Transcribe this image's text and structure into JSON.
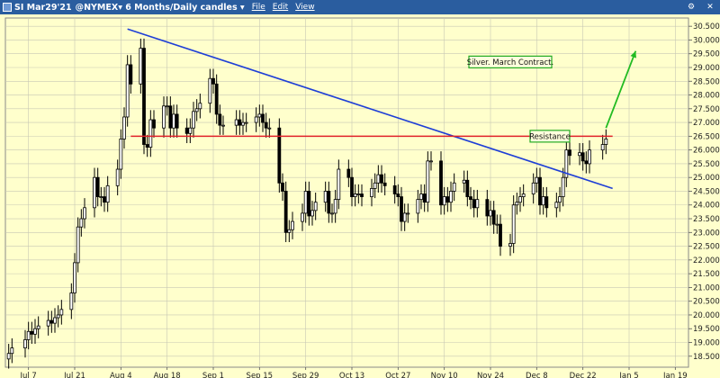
{
  "window": {
    "symbol": "SI Mar29'21",
    "exchange_period": "@NYMEX▾ 6 Months/Daily candles ▾",
    "menus": [
      "File",
      "Edit",
      "View"
    ],
    "controls": [
      "settings-icon",
      "close-icon"
    ]
  },
  "colors": {
    "background": "#ffffcc",
    "title_bar": "#2a5d9f",
    "grid": "#c8c8b4",
    "candle_up": "#ffffff",
    "candle_down": "#000000",
    "trendline": "#1f3fd6",
    "resistance": "#e0202a",
    "annotation_border": "#22aa22",
    "arrow": "#22bb22"
  },
  "chart_data": {
    "type": "candlestick",
    "title": "SI Mar29'21 @NYMEX 6 Months/Daily candles",
    "grid": true,
    "y_axis_side": "right",
    "ylim": [
      18.1,
      30.8
    ],
    "yticks": [
      18.5,
      19.0,
      19.5,
      20.0,
      20.5,
      21.0,
      21.5,
      22.0,
      22.5,
      23.0,
      23.5,
      24.0,
      24.5,
      25.0,
      25.5,
      26.0,
      26.5,
      27.0,
      27.5,
      28.0,
      28.5,
      29.0,
      29.5,
      30.0,
      30.5
    ],
    "ytick_labels": [
      "18.500",
      "19.000",
      "19.500",
      "20.000",
      "20.500",
      "21.000",
      "21.500",
      "22.000",
      "22.500",
      "23.000",
      "23.500",
      "24.000",
      "24.500",
      "25.000",
      "25.500",
      "26.000",
      "26.500",
      "27.000",
      "27.500",
      "28.000",
      "28.500",
      "29.000",
      "29.500",
      "30.000",
      "30.500"
    ],
    "x_labels": [
      "Jul 7",
      "Jul 21",
      "Aug 4",
      "Aug 18",
      "Sep 1",
      "Sep 15",
      "Sep 29",
      "Oct 13",
      "Oct 27",
      "Nov 10",
      "Nov 24",
      "Dec 8",
      "Dec 22",
      "Jan 5",
      "Jan 19"
    ],
    "x_range": [
      "2020-06-30",
      "2021-01-23"
    ],
    "candles_close": [
      [
        "2020-07-01",
        18.6
      ],
      [
        "2020-07-02",
        18.8
      ],
      [
        "2020-07-06",
        19.1
      ],
      [
        "2020-07-07",
        19.4
      ],
      [
        "2020-07-08",
        19.3
      ],
      [
        "2020-07-09",
        19.5
      ],
      [
        "2020-07-10",
        19.6
      ],
      [
        "2020-07-13",
        19.8
      ],
      [
        "2020-07-14",
        19.7
      ],
      [
        "2020-07-15",
        19.9
      ],
      [
        "2020-07-16",
        20.0
      ],
      [
        "2020-07-17",
        20.2
      ],
      [
        "2020-07-20",
        20.8
      ],
      [
        "2020-07-21",
        21.9
      ],
      [
        "2020-07-22",
        23.2
      ],
      [
        "2020-07-23",
        23.5
      ],
      [
        "2020-07-24",
        23.9
      ],
      [
        "2020-07-27",
        25.0
      ],
      [
        "2020-07-28",
        24.3
      ],
      [
        "2020-07-29",
        24.3
      ],
      [
        "2020-07-30",
        24.1
      ],
      [
        "2020-07-31",
        24.7
      ],
      [
        "2020-08-03",
        25.3
      ],
      [
        "2020-08-04",
        26.4
      ],
      [
        "2020-08-05",
        27.2
      ],
      [
        "2020-08-06",
        29.1
      ],
      [
        "2020-08-07",
        28.4
      ],
      [
        "2020-08-10",
        29.7
      ],
      [
        "2020-08-11",
        26.2
      ],
      [
        "2020-08-12",
        26.1
      ],
      [
        "2020-08-13",
        27.1
      ],
      [
        "2020-08-14",
        26.8
      ],
      [
        "2020-08-17",
        27.6
      ],
      [
        "2020-08-18",
        27.6
      ],
      [
        "2020-08-19",
        26.8
      ],
      [
        "2020-08-20",
        27.3
      ],
      [
        "2020-08-21",
        26.8
      ],
      [
        "2020-08-24",
        26.6
      ],
      [
        "2020-08-25",
        26.8
      ],
      [
        "2020-08-26",
        27.4
      ],
      [
        "2020-08-27",
        27.5
      ],
      [
        "2020-08-28",
        27.7
      ],
      [
        "2020-08-31",
        28.6
      ],
      [
        "2020-09-01",
        28.4
      ],
      [
        "2020-09-02",
        27.3
      ],
      [
        "2020-09-03",
        26.9
      ],
      [
        "2020-09-04",
        26.9
      ],
      [
        "2020-09-08",
        27.1
      ],
      [
        "2020-09-09",
        26.9
      ],
      [
        "2020-09-10",
        27.0
      ],
      [
        "2020-09-11",
        27.0
      ],
      [
        "2020-09-14",
        27.2
      ],
      [
        "2020-09-15",
        27.3
      ],
      [
        "2020-09-16",
        27.0
      ],
      [
        "2020-09-17",
        26.8
      ],
      [
        "2020-09-18",
        26.8
      ],
      [
        "2020-09-21",
        24.8
      ],
      [
        "2020-09-22",
        24.5
      ],
      [
        "2020-09-23",
        23.0
      ],
      [
        "2020-09-24",
        23.1
      ],
      [
        "2020-09-25",
        23.4
      ],
      [
        "2020-09-28",
        23.7
      ],
      [
        "2020-09-29",
        24.5
      ],
      [
        "2020-09-30",
        23.6
      ],
      [
        "2020-10-01",
        23.8
      ],
      [
        "2020-10-02",
        24.1
      ],
      [
        "2020-10-05",
        24.5
      ],
      [
        "2020-10-06",
        23.7
      ],
      [
        "2020-10-07",
        23.7
      ],
      [
        "2020-10-08",
        24.2
      ],
      [
        "2020-10-09",
        25.3
      ],
      [
        "2020-10-12",
        25.0
      ],
      [
        "2020-10-13",
        24.3
      ],
      [
        "2020-10-14",
        24.4
      ],
      [
        "2020-10-15",
        24.4
      ],
      [
        "2020-10-16",
        24.3
      ],
      [
        "2020-10-19",
        24.6
      ],
      [
        "2020-10-20",
        24.8
      ],
      [
        "2020-10-21",
        25.1
      ],
      [
        "2020-10-22",
        24.8
      ],
      [
        "2020-10-23",
        24.7
      ],
      [
        "2020-10-26",
        24.4
      ],
      [
        "2020-10-27",
        24.3
      ],
      [
        "2020-10-28",
        23.4
      ],
      [
        "2020-10-29",
        23.7
      ],
      [
        "2020-10-30",
        23.7
      ],
      [
        "2020-11-02",
        24.2
      ],
      [
        "2020-11-03",
        24.4
      ],
      [
        "2020-11-04",
        24.1
      ],
      [
        "2020-11-05",
        25.6
      ],
      [
        "2020-11-06",
        25.6
      ],
      [
        "2020-11-09",
        24.0
      ],
      [
        "2020-11-10",
        24.3
      ],
      [
        "2020-11-11",
        24.1
      ],
      [
        "2020-11-12",
        24.5
      ],
      [
        "2020-11-13",
        24.8
      ],
      [
        "2020-11-16",
        24.9
      ],
      [
        "2020-11-17",
        24.3
      ],
      [
        "2020-11-18",
        24.2
      ],
      [
        "2020-11-19",
        23.9
      ],
      [
        "2020-11-20",
        24.2
      ],
      [
        "2020-11-23",
        23.6
      ],
      [
        "2020-11-24",
        23.8
      ],
      [
        "2020-11-25",
        23.3
      ],
      [
        "2020-11-26",
        23.3
      ],
      [
        "2020-11-27",
        22.5
      ],
      [
        "2020-11-30",
        22.6
      ],
      [
        "2020-12-01",
        24.0
      ],
      [
        "2020-12-02",
        24.1
      ],
      [
        "2020-12-03",
        24.3
      ],
      [
        "2020-12-04",
        24.4
      ],
      [
        "2020-12-07",
        24.8
      ],
      [
        "2020-12-08",
        25.0
      ],
      [
        "2020-12-09",
        24.0
      ],
      [
        "2020-12-10",
        24.3
      ],
      [
        "2020-12-11",
        23.9
      ],
      [
        "2020-12-14",
        24.1
      ],
      [
        "2020-12-15",
        24.3
      ],
      [
        "2020-12-16",
        25.0
      ],
      [
        "2020-12-17",
        26.0
      ],
      [
        "2020-12-18",
        25.8
      ],
      [
        "2020-12-21",
        25.9
      ],
      [
        "2020-12-22",
        25.6
      ],
      [
        "2020-12-23",
        25.5
      ],
      [
        "2020-12-24",
        26.0
      ],
      [
        "2020-12-28",
        26.2
      ],
      [
        "2020-12-29",
        26.4
      ]
    ],
    "lines": [
      {
        "name": "",
        "kind": "trendline",
        "from": [
          "2020-08-06",
          30.4
        ],
        "to": [
          "2020-12-31",
          24.6
        ]
      },
      {
        "name": "",
        "kind": "horizontal",
        "from": [
          "2020-08-07",
          26.5
        ],
        "to": [
          "2020-12-31",
          26.5
        ]
      }
    ],
    "annotations": [
      {
        "text": "Silver. March Contract.",
        "at": [
          "2020-11-30",
          29.2
        ]
      },
      {
        "text": "Resistance",
        "at": [
          "2020-12-12",
          26.5
        ]
      }
    ]
  }
}
